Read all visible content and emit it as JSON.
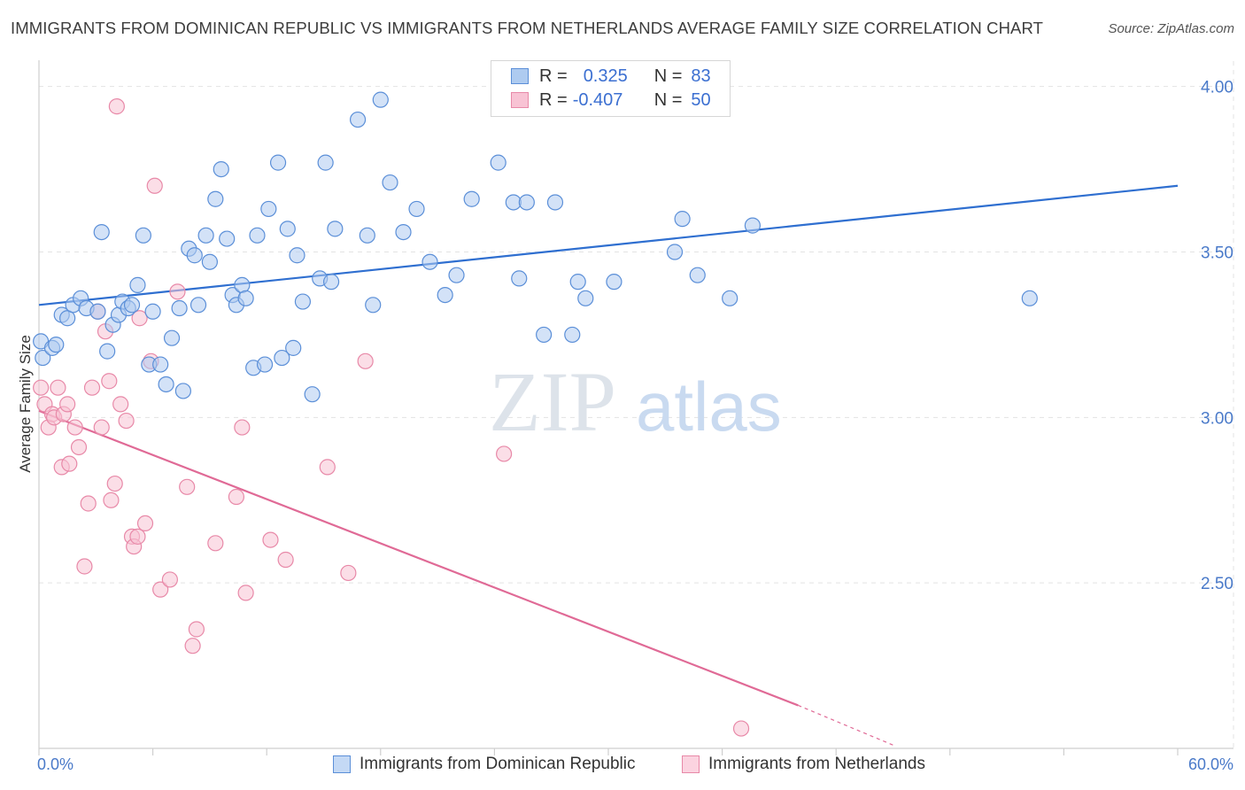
{
  "title": "IMMIGRANTS FROM DOMINICAN REPUBLIC VS IMMIGRANTS FROM NETHERLANDS AVERAGE FAMILY SIZE CORRELATION CHART",
  "source": "Source: ZipAtlas.com",
  "watermark": {
    "zip": "ZIP",
    "atlas": "atlas"
  },
  "legend": {
    "r_label": "R =",
    "n_label": "N =",
    "rows": [
      {
        "r": "0.325",
        "n": "83",
        "fill": "#aecbf0",
        "stroke": "#5b8fd8"
      },
      {
        "r": "-0.407",
        "n": "50",
        "fill": "#f8c3d4",
        "stroke": "#e889a8"
      }
    ]
  },
  "bottom_legend": [
    {
      "label": "Immigrants from Dominican Republic",
      "fill": "#c4d9f5",
      "stroke": "#5b8fd8"
    },
    {
      "label": "Immigrants from Netherlands",
      "fill": "#fbd3e0",
      "stroke": "#e889a8"
    }
  ],
  "chart_data": {
    "type": "scatter",
    "ylabel": "Average Family Size",
    "xlim": [
      0,
      60
    ],
    "ylim": [
      2.0,
      4.05
    ],
    "x_tick_labels": {
      "min": "0.0%",
      "max": "60.0%"
    },
    "y_ticks": [
      {
        "value": 2.5,
        "label": "2.50"
      },
      {
        "value": 3.0,
        "label": "3.00"
      },
      {
        "value": 3.5,
        "label": "3.50"
      },
      {
        "value": 4.0,
        "label": "4.00"
      }
    ],
    "series": [
      {
        "name": "Immigrants from Dominican Republic",
        "color": "#5b8fd8",
        "fill": "#aecbf0",
        "trend": {
          "x": [
            0,
            60
          ],
          "y": [
            3.34,
            3.7
          ],
          "color": "#2f6fd0"
        },
        "points": [
          [
            0.1,
            3.23
          ],
          [
            0.2,
            3.18
          ],
          [
            0.7,
            3.21
          ],
          [
            0.9,
            3.22
          ],
          [
            1.2,
            3.31
          ],
          [
            1.5,
            3.3
          ],
          [
            1.8,
            3.34
          ],
          [
            2.2,
            3.36
          ],
          [
            2.5,
            3.33
          ],
          [
            3.1,
            3.32
          ],
          [
            3.3,
            3.56
          ],
          [
            3.6,
            3.2
          ],
          [
            3.9,
            3.28
          ],
          [
            4.2,
            3.31
          ],
          [
            4.4,
            3.35
          ],
          [
            4.7,
            3.33
          ],
          [
            4.9,
            3.34
          ],
          [
            5.2,
            3.4
          ],
          [
            5.5,
            3.55
          ],
          [
            5.8,
            3.16
          ],
          [
            6.0,
            3.32
          ],
          [
            6.4,
            3.16
          ],
          [
            6.7,
            3.1
          ],
          [
            7.0,
            3.24
          ],
          [
            7.4,
            3.33
          ],
          [
            7.6,
            3.08
          ],
          [
            7.9,
            3.51
          ],
          [
            8.2,
            3.49
          ],
          [
            8.4,
            3.34
          ],
          [
            8.8,
            3.55
          ],
          [
            9.0,
            3.47
          ],
          [
            9.3,
            3.66
          ],
          [
            9.6,
            3.75
          ],
          [
            9.9,
            3.54
          ],
          [
            10.2,
            3.37
          ],
          [
            10.4,
            3.34
          ],
          [
            10.7,
            3.4
          ],
          [
            10.9,
            3.36
          ],
          [
            11.3,
            3.15
          ],
          [
            11.5,
            3.55
          ],
          [
            11.9,
            3.16
          ],
          [
            12.1,
            3.63
          ],
          [
            12.6,
            3.77
          ],
          [
            12.8,
            3.18
          ],
          [
            13.1,
            3.57
          ],
          [
            13.4,
            3.21
          ],
          [
            13.6,
            3.49
          ],
          [
            13.9,
            3.35
          ],
          [
            14.4,
            3.07
          ],
          [
            14.8,
            3.42
          ],
          [
            15.1,
            3.77
          ],
          [
            15.4,
            3.41
          ],
          [
            15.6,
            3.57
          ],
          [
            16.8,
            3.9
          ],
          [
            17.3,
            3.55
          ],
          [
            17.6,
            3.34
          ],
          [
            18.0,
            3.96
          ],
          [
            18.5,
            3.71
          ],
          [
            19.2,
            3.56
          ],
          [
            19.9,
            3.63
          ],
          [
            20.6,
            3.47
          ],
          [
            21.4,
            3.37
          ],
          [
            22.0,
            3.43
          ],
          [
            22.8,
            3.66
          ],
          [
            24.2,
            3.77
          ],
          [
            25.0,
            3.65
          ],
          [
            25.3,
            3.42
          ],
          [
            25.7,
            3.65
          ],
          [
            26.6,
            3.25
          ],
          [
            27.2,
            3.65
          ],
          [
            28.1,
            3.25
          ],
          [
            28.4,
            3.41
          ],
          [
            28.8,
            3.36
          ],
          [
            30.3,
            3.41
          ],
          [
            33.5,
            3.5
          ],
          [
            33.9,
            3.6
          ],
          [
            34.7,
            3.43
          ],
          [
            36.4,
            3.36
          ],
          [
            37.6,
            3.58
          ],
          [
            52.2,
            3.36
          ]
        ]
      },
      {
        "name": "Immigrants from Netherlands",
        "color": "#e889a8",
        "fill": "#f8c3d4",
        "trend": {
          "x": [
            0,
            40
          ],
          "y": [
            3.02,
            2.13
          ],
          "dash_x": [
            40,
            45
          ],
          "dash_y": [
            2.13,
            2.01
          ],
          "color": "#e06a96"
        },
        "points": [
          [
            0.1,
            3.09
          ],
          [
            0.3,
            3.04
          ],
          [
            0.5,
            2.97
          ],
          [
            0.7,
            3.01
          ],
          [
            0.8,
            3.0
          ],
          [
            1.0,
            3.09
          ],
          [
            1.2,
            2.85
          ],
          [
            1.3,
            3.01
          ],
          [
            1.5,
            3.04
          ],
          [
            1.6,
            2.86
          ],
          [
            1.9,
            2.97
          ],
          [
            2.1,
            2.91
          ],
          [
            2.4,
            2.55
          ],
          [
            2.6,
            2.74
          ],
          [
            2.8,
            3.09
          ],
          [
            3.1,
            3.32
          ],
          [
            3.3,
            2.97
          ],
          [
            3.5,
            3.26
          ],
          [
            3.7,
            3.11
          ],
          [
            3.8,
            2.75
          ],
          [
            4.0,
            2.8
          ],
          [
            4.1,
            3.94
          ],
          [
            4.3,
            3.04
          ],
          [
            4.6,
            2.99
          ],
          [
            4.9,
            2.64
          ],
          [
            5.0,
            2.61
          ],
          [
            5.2,
            2.64
          ],
          [
            5.3,
            3.3
          ],
          [
            5.6,
            2.68
          ],
          [
            5.9,
            3.17
          ],
          [
            6.1,
            3.7
          ],
          [
            6.4,
            2.48
          ],
          [
            6.9,
            2.51
          ],
          [
            7.3,
            3.38
          ],
          [
            7.8,
            2.79
          ],
          [
            8.1,
            2.31
          ],
          [
            8.3,
            2.36
          ],
          [
            9.3,
            2.62
          ],
          [
            10.4,
            2.76
          ],
          [
            10.7,
            2.97
          ],
          [
            10.9,
            2.47
          ],
          [
            12.2,
            2.63
          ],
          [
            13.0,
            2.57
          ],
          [
            15.2,
            2.85
          ],
          [
            16.3,
            2.53
          ],
          [
            17.2,
            3.17
          ],
          [
            24.5,
            2.89
          ],
          [
            37.0,
            2.06
          ]
        ]
      }
    ]
  }
}
